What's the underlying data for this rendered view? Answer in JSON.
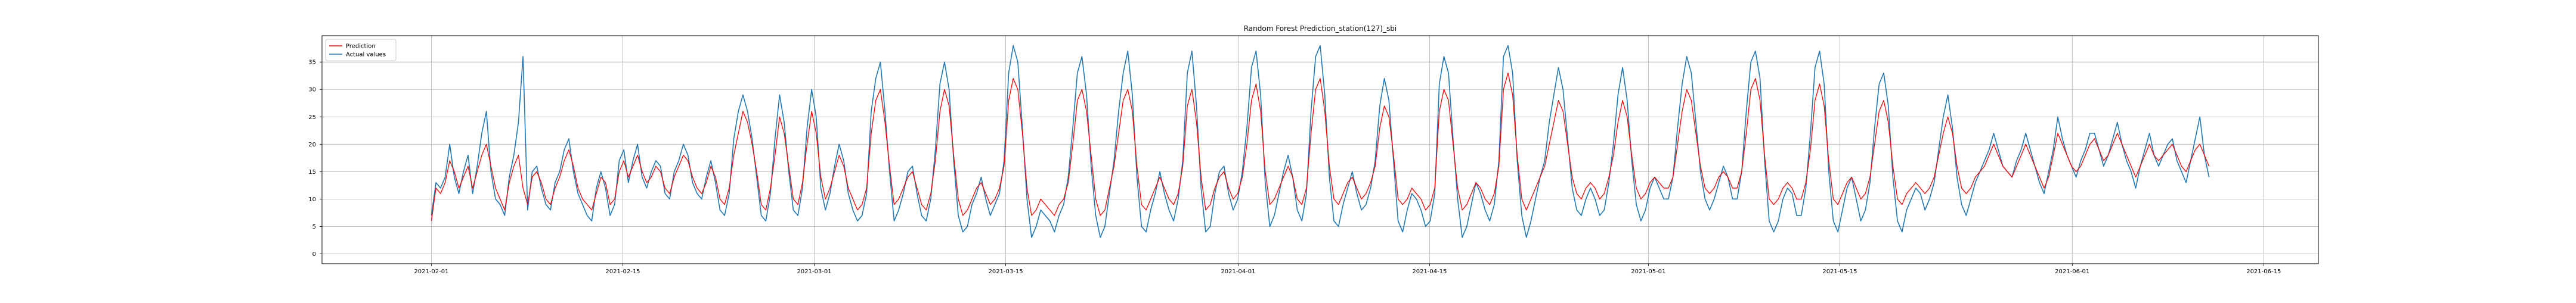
{
  "chart_data": {
    "type": "line",
    "title": "Random Forest Prediction_station(127)_sbi",
    "xlabel": "",
    "ylabel": "",
    "xlim": [
      "2021-01-24",
      "2021-06-19"
    ],
    "ylim": [
      -1.8,
      39.8
    ],
    "grid": true,
    "legend_position": "top-left",
    "x_ticks": [
      "2021-02-01",
      "2021-02-15",
      "2021-03-01",
      "2021-03-15",
      "2021-04-01",
      "2021-04-15",
      "2021-05-01",
      "2021-05-15",
      "2021-06-01",
      "2021-06-15"
    ],
    "y_ticks": [
      0,
      5,
      10,
      15,
      20,
      25,
      30,
      35
    ],
    "x_range": [
      "2021-02-01",
      "2021-06-11"
    ],
    "series": [
      {
        "name": "Prediction",
        "color": "#ff0000",
        "values": [
          6,
          12,
          11,
          13,
          17,
          15,
          12,
          14,
          16,
          12,
          15,
          18,
          20,
          16,
          12,
          10,
          8,
          13,
          16,
          18,
          12,
          9,
          14,
          15,
          13,
          10,
          9,
          12,
          14,
          17,
          19,
          16,
          12,
          10,
          9,
          8,
          11,
          14,
          13,
          9,
          10,
          15,
          17,
          14,
          16,
          18,
          15,
          13,
          14,
          16,
          15,
          12,
          11,
          14,
          16,
          18,
          17,
          14,
          12,
          11,
          13,
          16,
          14,
          10,
          9,
          12,
          18,
          22,
          26,
          24,
          20,
          15,
          9,
          8,
          12,
          18,
          25,
          22,
          16,
          10,
          9,
          13,
          20,
          26,
          22,
          14,
          10,
          12,
          15,
          18,
          16,
          12,
          10,
          8,
          9,
          12,
          22,
          28,
          30,
          24,
          16,
          9,
          10,
          12,
          14,
          15,
          12,
          9,
          8,
          11,
          17,
          26,
          30,
          27,
          18,
          10,
          7,
          8,
          10,
          12,
          13,
          11,
          9,
          10,
          12,
          16,
          28,
          32,
          30,
          22,
          12,
          7,
          8,
          10,
          9,
          8,
          7,
          9,
          10,
          13,
          20,
          28,
          30,
          26,
          18,
          10,
          7,
          8,
          12,
          16,
          22,
          28,
          30,
          26,
          16,
          9,
          8,
          10,
          12,
          14,
          12,
          10,
          9,
          11,
          16,
          27,
          30,
          24,
          14,
          8,
          9,
          12,
          14,
          15,
          12,
          10,
          11,
          14,
          20,
          28,
          31,
          26,
          15,
          9,
          10,
          12,
          14,
          16,
          14,
          10,
          9,
          12,
          22,
          30,
          32,
          26,
          16,
          10,
          9,
          11,
          13,
          14,
          12,
          10,
          11,
          13,
          16,
          23,
          27,
          25,
          18,
          10,
          9,
          10,
          12,
          11,
          10,
          8,
          9,
          12,
          26,
          30,
          28,
          20,
          12,
          8,
          9,
          11,
          13,
          12,
          10,
          9,
          11,
          16,
          30,
          33,
          29,
          18,
          10,
          8,
          10,
          12,
          14,
          16,
          20,
          24,
          28,
          26,
          20,
          14,
          11,
          10,
          12,
          13,
          12,
          10,
          11,
          14,
          18,
          24,
          28,
          25,
          18,
          12,
          10,
          11,
          13,
          14,
          13,
          12,
          12,
          14,
          20,
          26,
          30,
          28,
          22,
          16,
          12,
          11,
          12,
          14,
          15,
          14,
          12,
          12,
          15,
          22,
          30,
          32,
          28,
          18,
          10,
          9,
          10,
          12,
          13,
          12,
          10,
          10,
          13,
          19,
          28,
          31,
          27,
          17,
          10,
          9,
          11,
          13,
          14,
          12,
          10,
          11,
          14,
          20,
          26,
          28,
          24,
          16,
          10,
          9,
          11,
          12,
          13,
          12,
          11,
          12,
          14,
          18,
          22,
          25,
          22,
          16,
          12,
          11,
          12,
          14,
          15,
          16,
          18,
          20,
          18,
          16,
          15,
          14,
          16,
          18,
          20,
          18,
          16,
          14,
          12,
          14,
          18,
          22,
          20,
          18,
          16,
          15,
          16,
          18,
          20,
          21,
          19,
          17,
          18,
          20,
          22,
          20,
          18,
          16,
          14,
          16,
          18,
          20,
          18,
          17,
          18,
          19,
          20,
          18,
          16,
          15,
          17,
          19,
          20,
          18,
          16
        ]
      },
      {
        "name": "Actual values",
        "color": "#1f77b4",
        "values": [
          7,
          13,
          12,
          14,
          20,
          14,
          11,
          15,
          18,
          11,
          16,
          22,
          26,
          15,
          10,
          9,
          7,
          14,
          18,
          24,
          36,
          8,
          15,
          16,
          12,
          9,
          8,
          13,
          15,
          19,
          21,
          15,
          11,
          9,
          7,
          6,
          12,
          15,
          12,
          7,
          9,
          17,
          19,
          13,
          17,
          20,
          14,
          12,
          15,
          17,
          16,
          11,
          10,
          15,
          17,
          20,
          18,
          13,
          11,
          10,
          14,
          17,
          13,
          8,
          7,
          11,
          21,
          26,
          29,
          26,
          21,
          14,
          7,
          6,
          11,
          21,
          29,
          24,
          15,
          8,
          7,
          12,
          23,
          30,
          25,
          12,
          8,
          11,
          16,
          20,
          17,
          11,
          8,
          6,
          7,
          11,
          26,
          32,
          35,
          26,
          15,
          6,
          8,
          11,
          15,
          16,
          11,
          7,
          6,
          10,
          19,
          31,
          35,
          30,
          17,
          7,
          4,
          5,
          9,
          11,
          14,
          10,
          7,
          9,
          11,
          17,
          33,
          38,
          35,
          23,
          10,
          3,
          5,
          8,
          7,
          6,
          4,
          7,
          9,
          14,
          23,
          33,
          36,
          29,
          16,
          7,
          3,
          5,
          11,
          17,
          26,
          33,
          37,
          29,
          14,
          5,
          4,
          8,
          11,
          15,
          11,
          8,
          6,
          10,
          17,
          33,
          37,
          27,
          12,
          4,
          5,
          11,
          15,
          16,
          11,
          8,
          10,
          15,
          23,
          34,
          37,
          29,
          13,
          5,
          7,
          11,
          15,
          18,
          14,
          8,
          6,
          11,
          26,
          36,
          38,
          29,
          14,
          6,
          5,
          9,
          12,
          15,
          11,
          8,
          9,
          12,
          17,
          27,
          32,
          28,
          17,
          6,
          4,
          8,
          11,
          10,
          8,
          5,
          6,
          11,
          31,
          36,
          33,
          21,
          10,
          3,
          5,
          9,
          13,
          11,
          8,
          6,
          9,
          17,
          36,
          38,
          33,
          17,
          7,
          3,
          6,
          10,
          14,
          17,
          24,
          29,
          34,
          30,
          21,
          12,
          8,
          7,
          10,
          12,
          10,
          7,
          8,
          13,
          20,
          29,
          34,
          28,
          17,
          9,
          6,
          8,
          12,
          14,
          12,
          10,
          10,
          14,
          23,
          31,
          36,
          33,
          24,
          15,
          10,
          8,
          10,
          13,
          16,
          14,
          10,
          10,
          15,
          26,
          35,
          37,
          32,
          17,
          6,
          4,
          6,
          10,
          12,
          11,
          7,
          7,
          12,
          22,
          34,
          37,
          31,
          15,
          6,
          4,
          8,
          12,
          14,
          10,
          6,
          8,
          13,
          23,
          31,
          33,
          27,
          14,
          6,
          4,
          8,
          10,
          12,
          11,
          8,
          10,
          13,
          19,
          25,
          29,
          23,
          14,
          9,
          7,
          10,
          13,
          15,
          17,
          19,
          22,
          19,
          16,
          15,
          14,
          17,
          19,
          22,
          19,
          16,
          13,
          11,
          15,
          19,
          25,
          21,
          18,
          16,
          14,
          17,
          19,
          22,
          22,
          19,
          16,
          18,
          21,
          24,
          20,
          17,
          15,
          12,
          16,
          19,
          22,
          18,
          16,
          18,
          20,
          21,
          17,
          15,
          13,
          17,
          21,
          25,
          18,
          14
        ]
      }
    ]
  }
}
